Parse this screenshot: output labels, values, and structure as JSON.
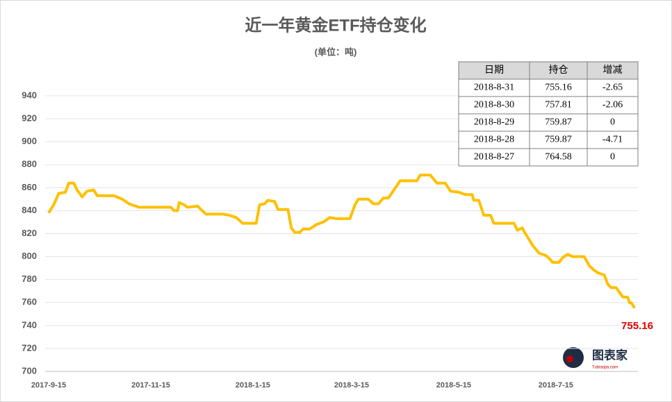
{
  "chart_data": {
    "type": "line",
    "title": "近一年黄金ETF持仓变化",
    "subtitle": "(单位：吨)",
    "x": [
      "2017-9-15",
      "2017-9-18",
      "2017-9-21",
      "2017-9-25",
      "2017-9-27",
      "2017-9-30",
      "2017-10-2",
      "2017-10-5",
      "2017-10-8",
      "2017-10-12",
      "2017-10-14",
      "2017-10-24",
      "2017-10-29",
      "2017-11-2",
      "2017-11-8",
      "2017-11-27",
      "2017-11-29",
      "2017-12-1",
      "2017-12-2",
      "2017-12-5",
      "2017-12-7",
      "2017-12-13",
      "2017-12-15",
      "2017-12-18",
      "2017-12-22",
      "2017-12-28",
      "2018-1-1",
      "2018-1-5",
      "2018-1-9",
      "2018-1-17",
      "2018-1-19",
      "2018-1-22",
      "2018-1-24",
      "2018-1-28",
      "2018-1-30",
      "2018-2-5",
      "2018-2-7",
      "2018-2-9",
      "2018-2-12",
      "2018-2-14",
      "2018-2-18",
      "2018-2-22",
      "2018-2-26",
      "2018-3-2",
      "2018-3-6",
      "2018-3-14",
      "2018-3-17",
      "2018-3-19",
      "2018-3-25",
      "2018-3-28",
      "2018-3-31",
      "2018-4-3",
      "2018-4-6",
      "2018-4-13",
      "2018-4-23",
      "2018-4-25",
      "2018-5-1",
      "2018-5-5",
      "2018-5-10",
      "2018-5-13",
      "2018-5-18",
      "2018-5-22",
      "2018-5-26",
      "2018-5-27",
      "2018-5-30",
      "2018-6-2",
      "2018-6-6",
      "2018-6-8",
      "2018-6-20",
      "2018-6-22",
      "2018-6-25",
      "2018-6-26",
      "2018-6-29",
      "2018-7-1",
      "2018-7-5",
      "2018-7-9",
      "2018-7-12",
      "2018-7-13",
      "2018-7-17",
      "2018-7-19",
      "2018-7-22",
      "2018-7-25",
      "2018-8-1",
      "2018-8-4",
      "2018-8-7",
      "2018-8-9",
      "2018-8-13",
      "2018-8-15",
      "2018-8-17",
      "2018-8-20",
      "2018-8-22",
      "2018-8-24",
      "2018-8-27",
      "2018-8-28",
      "2018-8-29",
      "2018-8-30",
      "2018-8-31"
    ],
    "series": [
      {
        "color": "#FFC000",
        "values": [
          838,
          845,
          855,
          856,
          864,
          864,
          858,
          852,
          857,
          858,
          853,
          853,
          850,
          846,
          843,
          843,
          840,
          840,
          847,
          845,
          843,
          844,
          841,
          837,
          837,
          837,
          836,
          834,
          829,
          829,
          845,
          846,
          849,
          848,
          841,
          841,
          825,
          821,
          821,
          824,
          824,
          828,
          830,
          834,
          833,
          833,
          845,
          850,
          850,
          846,
          846,
          851,
          851,
          866,
          866,
          871,
          871,
          864,
          864,
          857,
          856,
          854,
          854,
          849,
          849,
          836,
          836,
          829,
          829,
          823,
          825,
          822,
          815,
          810,
          803,
          801,
          797,
          795,
          795,
          799,
          802,
          800,
          800,
          792,
          788,
          786,
          784,
          776,
          773,
          773,
          769,
          765,
          764.58,
          759.87,
          759.87,
          757.81,
          755.16
        ]
      }
    ],
    "xlim": [
      "2017-9-15",
      "2018-8-31"
    ],
    "xticks": [
      "2017-9-15",
      "2017-11-15",
      "2018-1-15",
      "2018-3-15",
      "2018-5-15",
      "2018-7-15"
    ],
    "ylim": [
      700,
      940
    ],
    "yticks": [
      700,
      720,
      740,
      760,
      780,
      800,
      820,
      840,
      860,
      880,
      900,
      920,
      940
    ],
    "grid": true,
    "last_label_color": "#E00000",
    "table": {
      "header": [
        "日期",
        "持仓",
        "增减"
      ],
      "rows": [
        [
          "2018-8-31",
          755.16,
          -2.65
        ],
        [
          "2018-8-30",
          757.81,
          -2.06
        ],
        [
          "2018-8-29",
          759.87,
          0
        ],
        [
          "2018-8-28",
          759.87,
          -4.71
        ],
        [
          "2018-8-27",
          764.58,
          0
        ]
      ]
    },
    "watermark": "图表家",
    "watermark_url": "Tubiaojia.com"
  }
}
